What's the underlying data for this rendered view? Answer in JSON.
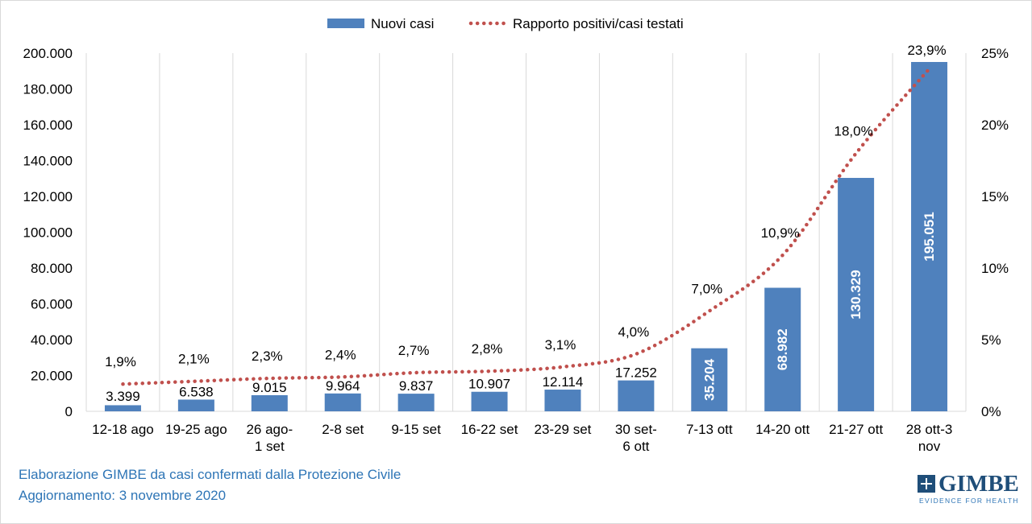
{
  "chart_data": {
    "type": "bar",
    "categories": [
      "12-18 ago",
      "19-25 ago",
      "26 ago-\n1 set",
      "2-8 set",
      "9-15 set",
      "16-22 set",
      "23-29 set",
      "30 set-\n6 ott",
      "7-13 ott",
      "14-20 ott",
      "21-27 ott",
      "28 ott-3\nnov"
    ],
    "series": [
      {
        "name": "Nuovi casi",
        "kind": "bar",
        "axis": "left",
        "color": "#4f81bd",
        "values": [
          3399,
          6538,
          9015,
          9964,
          9837,
          10907,
          12114,
          17252,
          35204,
          68982,
          130329,
          195051
        ],
        "labels": [
          "3.399",
          "6.538",
          "9.015",
          "9.964",
          "9.837",
          "10.907",
          "12.114",
          "17.252",
          "35.204",
          "68.982",
          "130.329",
          "195.051"
        ]
      },
      {
        "name": "Rapporto positivi/casi testati",
        "kind": "line-dotted",
        "axis": "right",
        "color": "#c0504d",
        "values": [
          1.9,
          2.1,
          2.3,
          2.4,
          2.7,
          2.8,
          3.1,
          4.0,
          7.0,
          10.9,
          18.0,
          23.9
        ],
        "labels": [
          "1,9%",
          "2,1%",
          "2,3%",
          "2,4%",
          "2,7%",
          "2,8%",
          "3,1%",
          "4,0%",
          "7,0%",
          "10,9%",
          "18,0%",
          "23,9%"
        ]
      }
    ],
    "ylim": [
      0,
      200000
    ],
    "yticks": [
      "0",
      "20.000",
      "40.000",
      "60.000",
      "80.000",
      "100.000",
      "120.000",
      "140.000",
      "160.000",
      "180.000",
      "200.000"
    ],
    "y2lim": [
      0,
      25
    ],
    "y2ticks": [
      "0%",
      "5%",
      "10%",
      "15%",
      "20%",
      "25%"
    ],
    "grid": "vertical",
    "legend_position": "top"
  },
  "footer": {
    "line1": "Elaborazione GIMBE da casi confermati dalla Protezione Civile",
    "line2": "Aggiornamento: 3 novembre 2020"
  },
  "logo": {
    "name": "GIMBE",
    "tagline": "EVIDENCE FOR HEALTH"
  }
}
